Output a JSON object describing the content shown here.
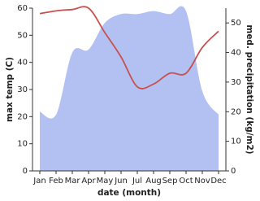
{
  "chart_data": {
    "type": "line-area",
    "x_label": "date (month)",
    "y_label": "max temp (C)",
    "y2_label": "med. precipitation (kg/m2)",
    "categories": [
      "Jan",
      "Feb",
      "Mar",
      "Apr",
      "May",
      "Jun",
      "Jul",
      "Aug",
      "Sep",
      "Oct",
      "Nov",
      "Dec"
    ],
    "ylim": [
      0,
      60
    ],
    "yticks": [
      0,
      10,
      20,
      30,
      40,
      50,
      60
    ],
    "y2lim": [
      0,
      55
    ],
    "y2ticks": [
      0,
      10,
      20,
      30,
      40,
      50
    ],
    "series": [
      {
        "name": "med. precipitation",
        "type": "area",
        "axis": "y2",
        "color": "#b3c1f2",
        "values": [
          20,
          19,
          40,
          41,
          50,
          53,
          53,
          54,
          53,
          54,
          27,
          19
        ]
      },
      {
        "name": "max temp",
        "type": "line",
        "axis": "y",
        "color": "#c8504f",
        "values": [
          58,
          59,
          59.5,
          60,
          51,
          42,
          31,
          32,
          36,
          36,
          45.5,
          51.5
        ]
      }
    ]
  }
}
